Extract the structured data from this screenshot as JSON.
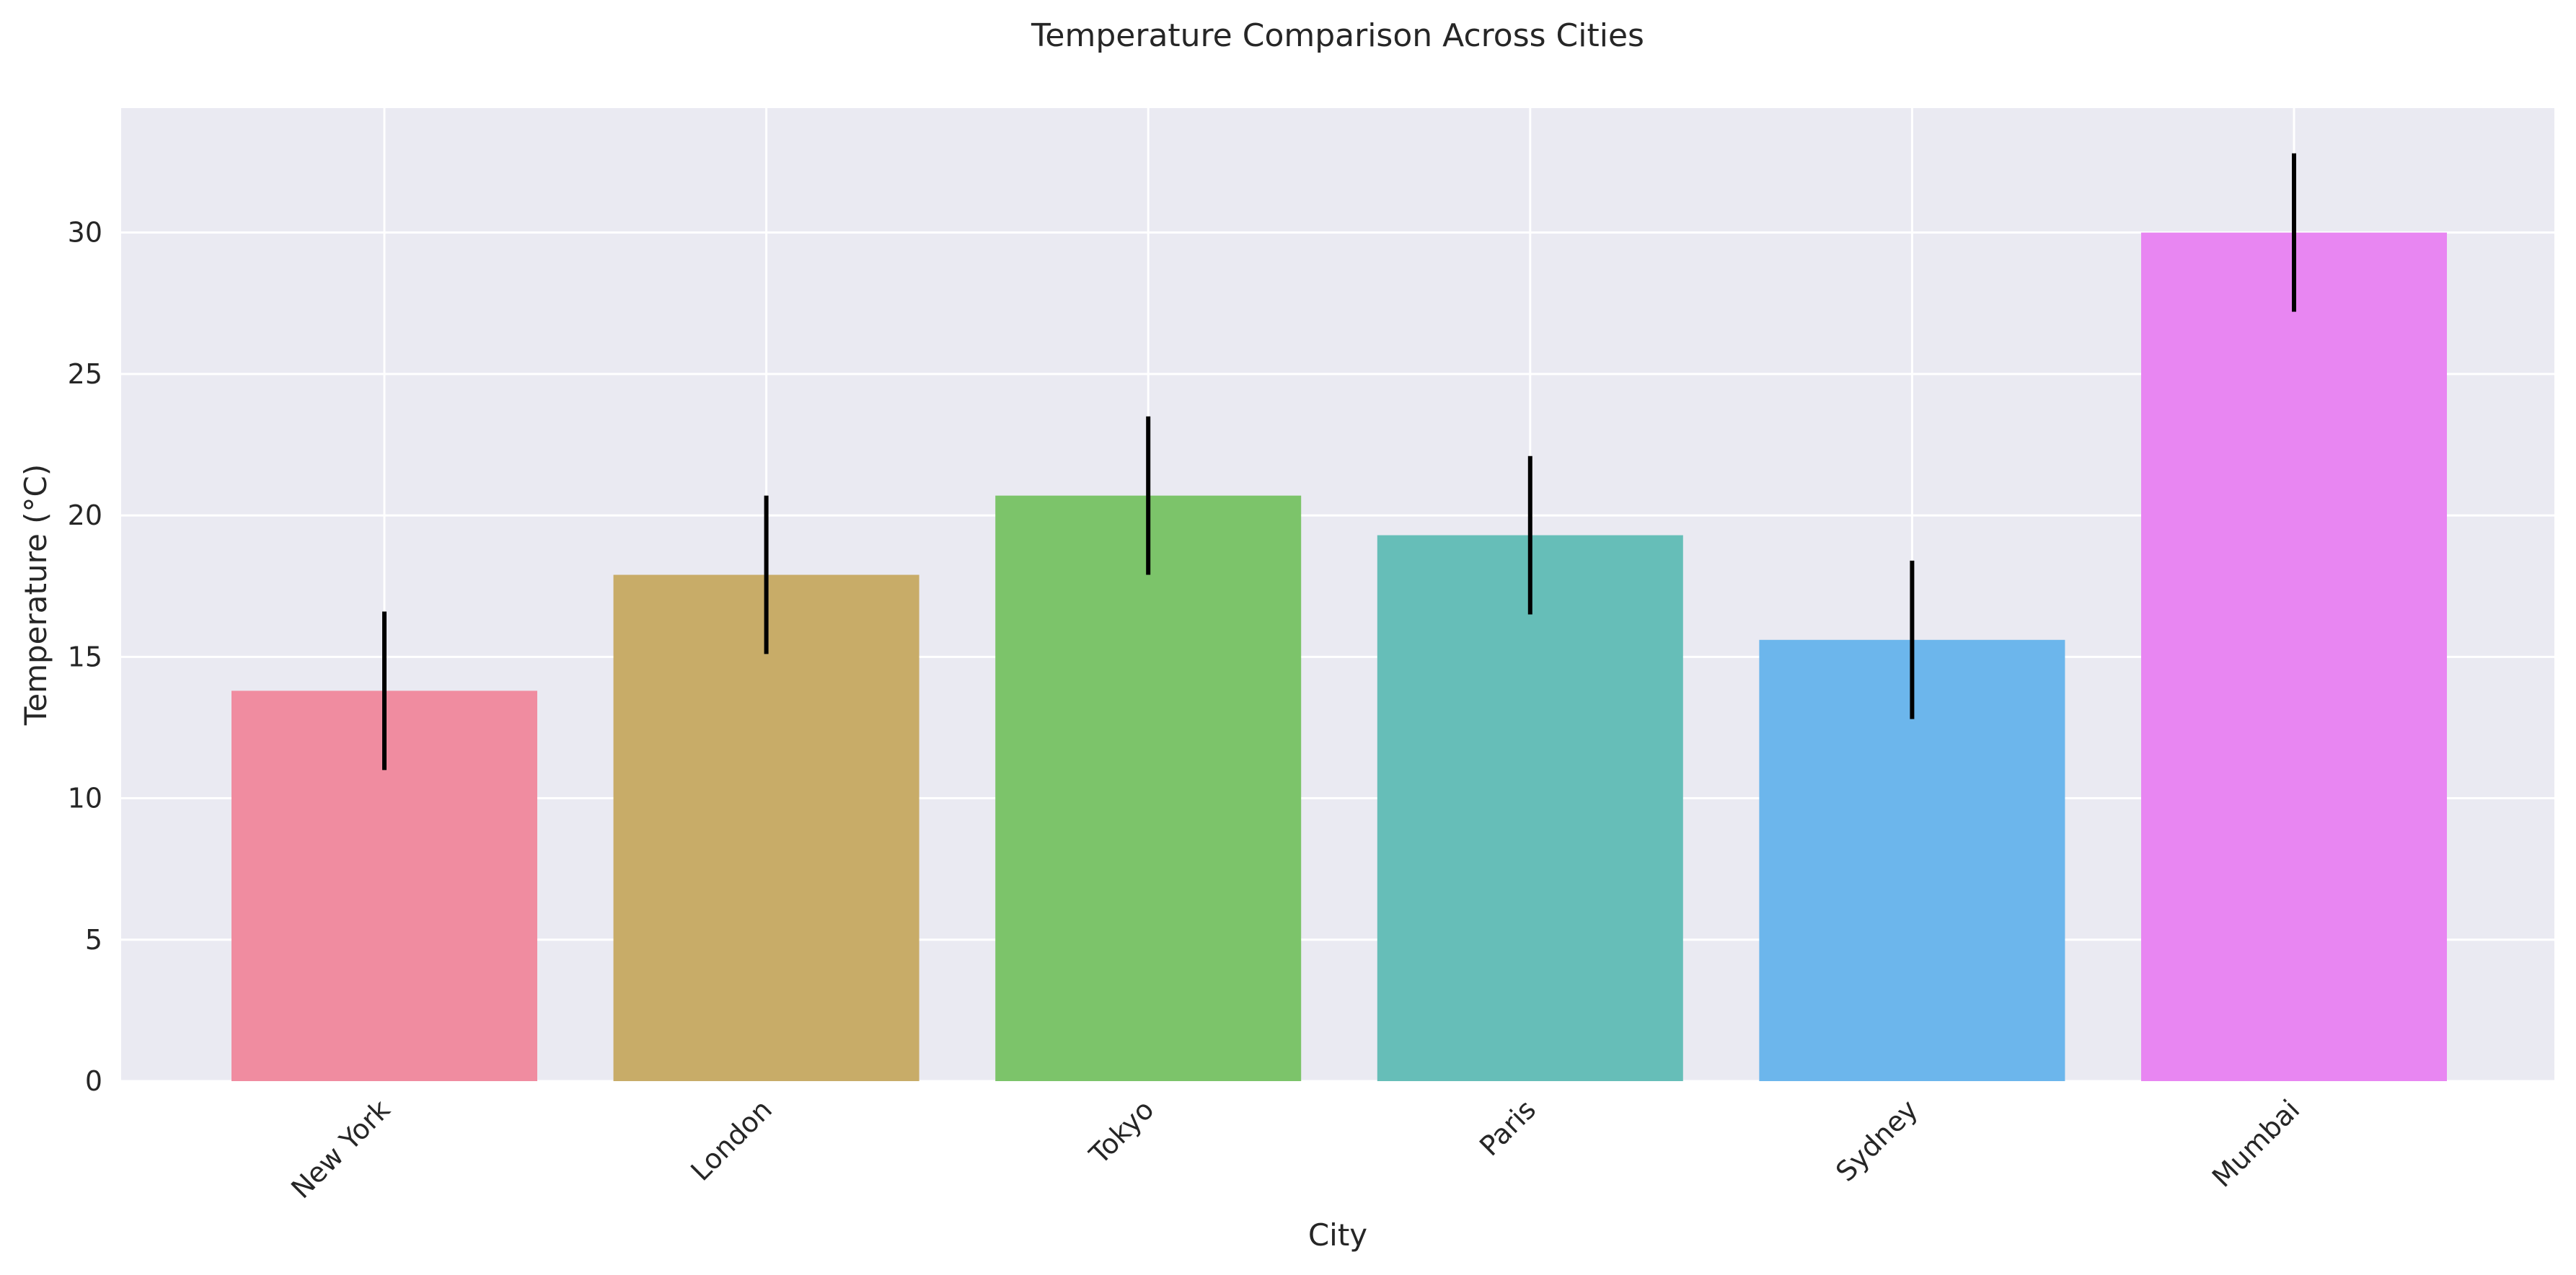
{
  "chart_data": {
    "type": "bar",
    "title": "Temperature Comparison Across Cities",
    "xlabel": "City",
    "ylabel": "Temperature (°C)",
    "categories": [
      "New York",
      "London",
      "Tokyo",
      "Paris",
      "Sydney",
      "Mumbai"
    ],
    "values": [
      13.8,
      17.9,
      20.7,
      19.3,
      15.6,
      30.0
    ],
    "error": [
      2.8,
      2.8,
      2.8,
      2.8,
      2.8,
      2.8
    ],
    "colors": [
      "#F08CA0",
      "#C8AC68",
      "#7CC46A",
      "#66BEB8",
      "#6CB6EC",
      "#E886F2"
    ],
    "ylim": [
      0,
      34.4
    ],
    "yticks": [
      0,
      5,
      10,
      15,
      20,
      25,
      30
    ],
    "grid": true,
    "background": "#EAEAF2",
    "errorbar_color": "#000000"
  }
}
